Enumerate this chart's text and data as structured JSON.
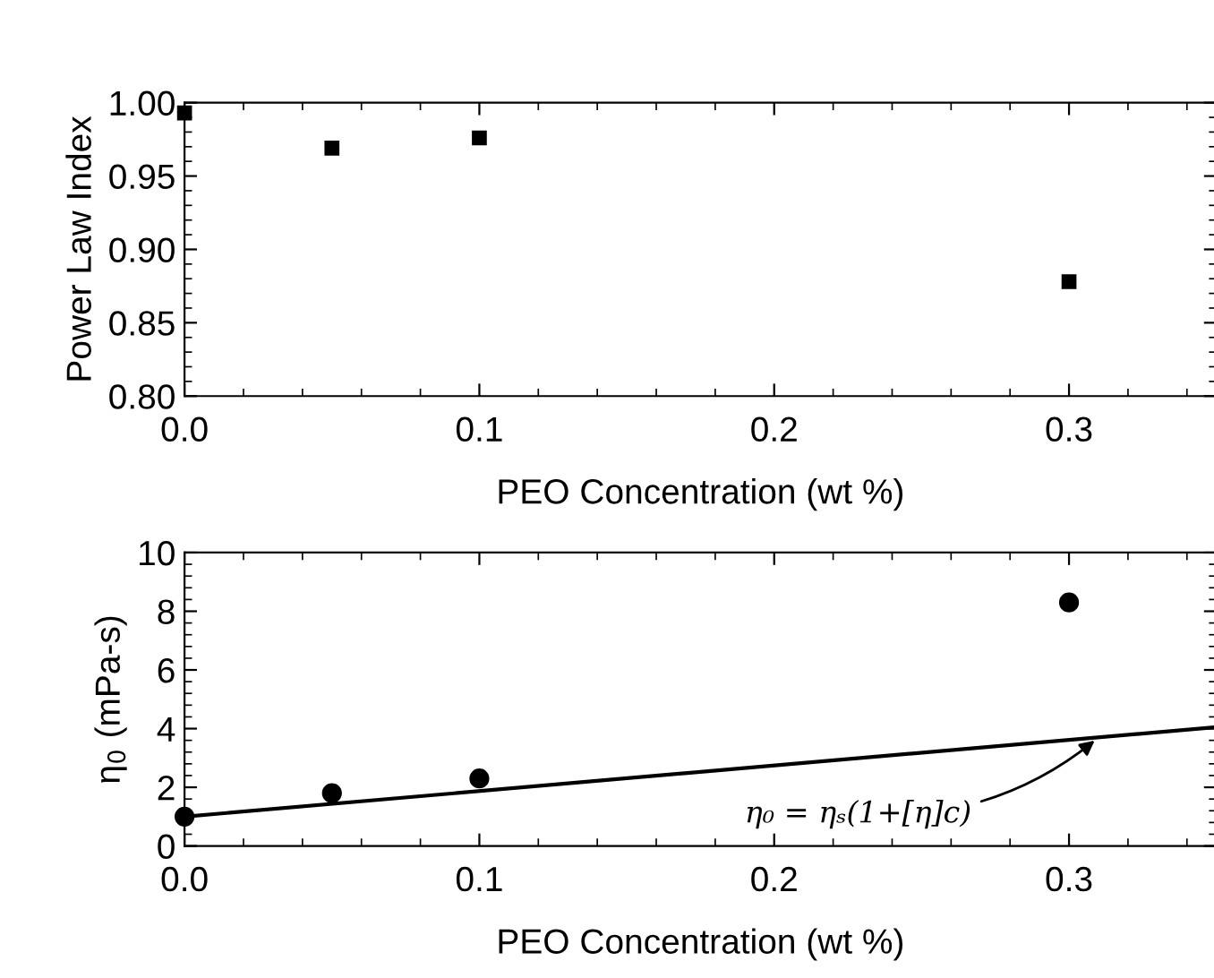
{
  "chart_data": [
    {
      "type": "scatter",
      "xlabel": "PEO Concentration (wt %)",
      "ylabel": "Power Law Index",
      "xlim": [
        0,
        0.35
      ],
      "xticks": [
        {
          "value": 0,
          "label": "0.0"
        },
        0.1,
        0.2,
        0.3
      ],
      "ylim": [
        0.8,
        1.0
      ],
      "yticks": [
        {
          "value": 0.8,
          "label": "0.80"
        },
        0.85,
        {
          "value": 0.9,
          "label": "0.90"
        },
        0.95,
        {
          "value": 1.0,
          "label": "1.00"
        }
      ],
      "grid": false,
      "marker": "square",
      "series": [
        {
          "color": "#000000",
          "x": [
            0,
            0.05,
            0.1,
            0.3
          ],
          "values": [
            0.993,
            0.969,
            0.976,
            0.878
          ]
        }
      ]
    },
    {
      "type": "scatter",
      "xlabel": "PEO Concentration (wt %)",
      "ylabel": "η$_{0}$ (mPa-s)",
      "xlim": [
        0,
        0.35
      ],
      "xticks": [
        {
          "value": 0,
          "label": "0.0"
        },
        0.1,
        0.2,
        0.3
      ],
      "ylim": [
        0,
        10
      ],
      "yticks": [
        0,
        2,
        4,
        6,
        8,
        10
      ],
      "grid": false,
      "marker": "circle",
      "annotations": [
        {
          "text": "η₀ = ηₛ(1+[η]c)",
          "x": 0.31,
          "y": 3.7
        }
      ],
      "series": [
        {
          "color": "#000000",
          "x": [
            0,
            0.05,
            0.1,
            0.3
          ],
          "values": [
            1.0,
            1.8,
            2.3,
            8.3
          ]
        },
        {
          "type": "line",
          "marker": "none",
          "line_style": "solid",
          "color": "#000000",
          "x": [
            0,
            0.35
          ],
          "values": [
            1.0,
            4.05
          ]
        }
      ]
    }
  ]
}
